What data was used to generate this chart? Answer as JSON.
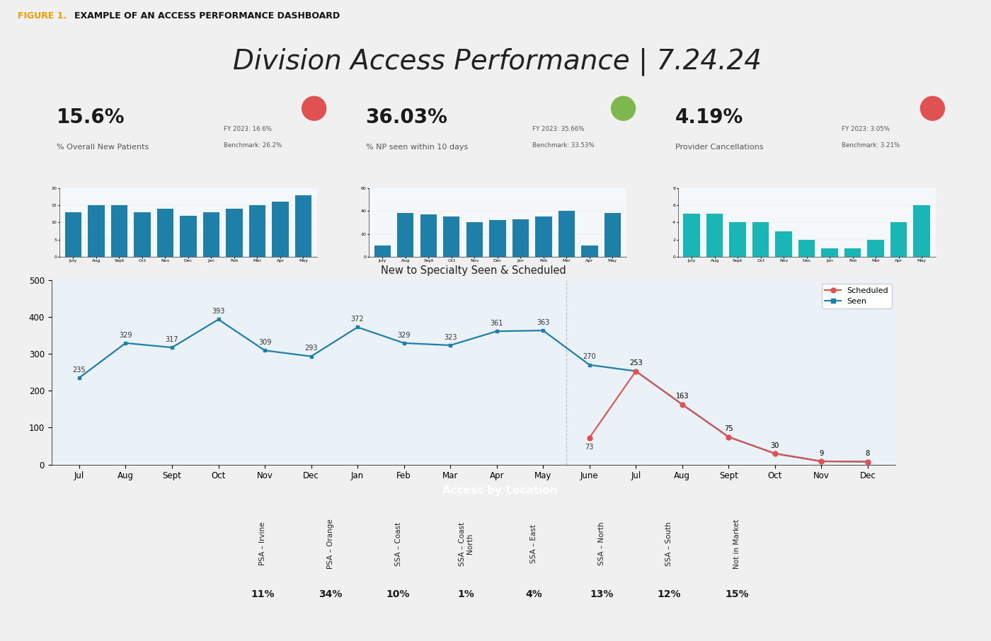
{
  "title": "Division Access Performance | 7.24.24",
  "fig_label": "FIGURE 1.",
  "fig_label_color": "#E8A000",
  "fig_subtitle": "EXAMPLE OF AN ACCESS PERFORMANCE DASHBOARD",
  "outer_bg": "#f0f0f0",
  "inner_bg": "#dce8f2",
  "panel_bg": "#f5f8fb",
  "kpi_panels": [
    {
      "value": "15.6%",
      "label": "% Overall New Patients",
      "fy_label": "FY 2023: 16.6%",
      "benchmark": "Benchmark: 26.2%",
      "dot_color": "#e05252",
      "bar_values": [
        13,
        15,
        15,
        13,
        14,
        12,
        13,
        14,
        15,
        16,
        18
      ],
      "bar_color": "#1e7fa8",
      "yticks": [
        0,
        5,
        10,
        15,
        20
      ],
      "ymax": 20,
      "months": [
        "July",
        "Aug",
        "Sept",
        "Oct",
        "Nov",
        "Dec",
        "Jan",
        "Feb",
        "Mar",
        "Apr",
        "May"
      ]
    },
    {
      "value": "36.03%",
      "label": "% NP seen within 10 days",
      "fy_label": "FY 2023: 35.66%",
      "benchmark": "Benchmark: 33.53%",
      "dot_color": "#7cb84e",
      "bar_values": [
        10,
        38,
        37,
        35,
        30,
        32,
        33,
        35,
        40,
        10,
        38
      ],
      "bar_color": "#1e7fa8",
      "yticks": [
        0,
        20,
        40,
        60
      ],
      "ymax": 60,
      "months": [
        "July",
        "Aug",
        "Sept",
        "Oct",
        "Nov",
        "Dec",
        "Jan",
        "Feb",
        "Mar",
        "Apr",
        "May"
      ]
    },
    {
      "value": "4.19%",
      "label": "Provider Cancellations",
      "fy_label": "FY 2023: 3.05%",
      "benchmark": "Benchmark: 3.21%",
      "dot_color": "#e05252",
      "bar_values": [
        5,
        5,
        4,
        4,
        3,
        2,
        1,
        1,
        2,
        4,
        6
      ],
      "bar_color": "#1ab5b5",
      "yticks": [
        0,
        2,
        4,
        6,
        8
      ],
      "ymax": 8,
      "months": [
        "July",
        "Aug",
        "Sept",
        "Oct",
        "Nov",
        "Dec",
        "Jan",
        "Feb",
        "Mar",
        "Apr",
        "May"
      ]
    }
  ],
  "line_chart": {
    "title": "New to Specialty Seen & Scheduled",
    "months_all": [
      "Jul",
      "Aug",
      "Sept",
      "Oct",
      "Nov",
      "Dec",
      "Jan",
      "Feb",
      "Mar",
      "Apr",
      "May",
      "June",
      "Jul",
      "Aug",
      "Sept",
      "Oct",
      "Nov",
      "Dec"
    ],
    "seen_values": [
      235,
      329,
      317,
      393,
      309,
      293,
      372,
      329,
      323,
      361,
      363,
      270,
      253,
      163,
      75,
      30,
      9,
      8
    ],
    "scheduled_values": [
      null,
      null,
      null,
      null,
      null,
      null,
      null,
      null,
      null,
      null,
      null,
      73,
      253,
      163,
      75,
      30,
      9,
      8
    ],
    "seen_color": "#1e7fa8",
    "scheduled_color": "#e05252",
    "ylim": [
      0,
      500
    ],
    "yticks": [
      0,
      100,
      200,
      300,
      400,
      500
    ],
    "divider_idx": 10.5
  },
  "table": {
    "header": "Access by Location",
    "header_bg": "#1a6b8a",
    "header_fg": "#ffffff",
    "columns": [
      "PSA – Irvine",
      "PSA – Orange",
      "SSA – Coast",
      "SSA – Coast\nNorth",
      "SSA – East",
      "SSA – North",
      "SSA – South",
      "Not in Market"
    ],
    "values": [
      "11%",
      "34%",
      "10%",
      "1%",
      "4%",
      "13%",
      "12%",
      "15%"
    ],
    "row_bg": "#e8eef4",
    "val_bg": "#ffffff"
  }
}
